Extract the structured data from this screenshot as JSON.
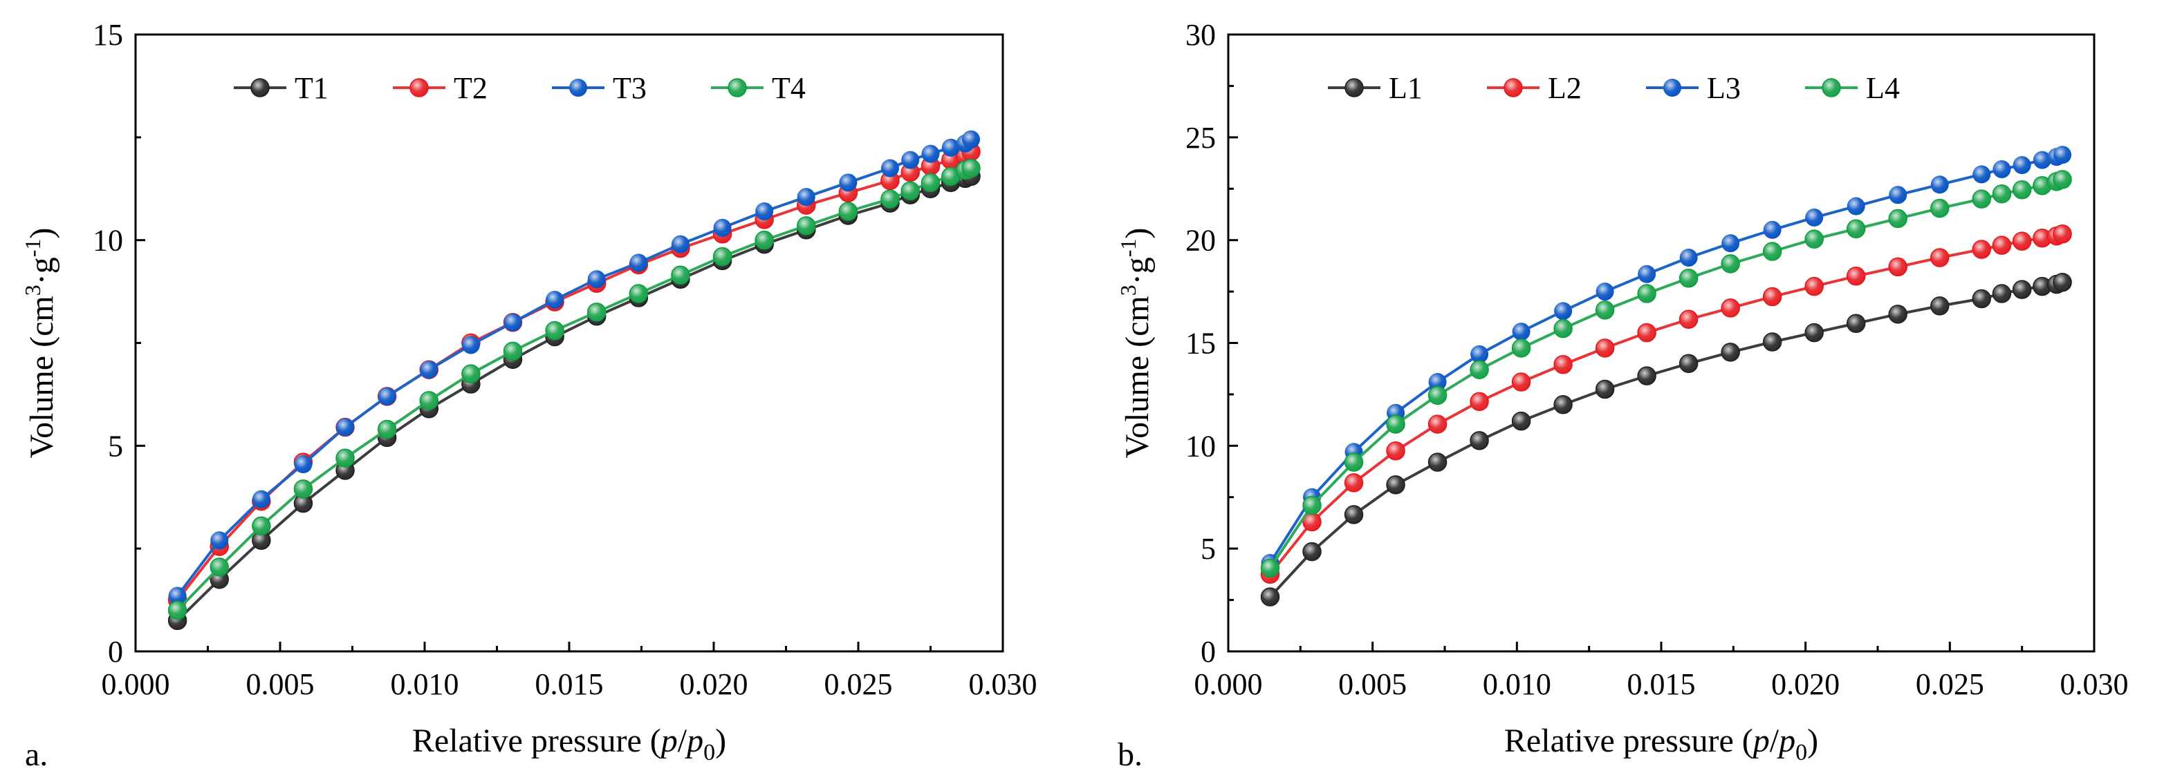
{
  "figure": {
    "panels": [
      {
        "panel_label": "a.",
        "xlabel_prefix": "Relative pressure (",
        "xlabel_p": "p",
        "xlabel_slash": "/",
        "xlabel_p0": "p",
        "xlabel_sub": "0",
        "xlabel_suffix": ")",
        "ylabel_prefix": "Volume (cm",
        "ylabel_sup3": "3",
        "ylabel_mid": "·g",
        "ylabel_supm1": "-1",
        "ylabel_suffix": ")"
      },
      {
        "panel_label": "b.",
        "xlabel_prefix": "Relative pressure (",
        "xlabel_p": "p",
        "xlabel_slash": "/",
        "xlabel_p0": "p",
        "xlabel_sub": "0",
        "xlabel_suffix": ")",
        "ylabel_prefix": "Volume (cm",
        "ylabel_sup3": "3",
        "ylabel_mid": "·g",
        "ylabel_supm1": "-1",
        "ylabel_suffix": ")"
      }
    ]
  },
  "chart_data": [
    {
      "type": "line",
      "title": "",
      "xlabel": "Relative pressure (p/p0)",
      "ylabel": "Volume (cm3·g-1)",
      "xlim": [
        0.0,
        0.03
      ],
      "ylim": [
        0,
        15
      ],
      "xticks": [
        "0.000",
        "0.005",
        "0.010",
        "0.015",
        "0.020",
        "0.025",
        "0.030"
      ],
      "yticks": [
        "0",
        "5",
        "10",
        "15"
      ],
      "legend_position": "top-center",
      "x": [
        0.00145,
        0.0029,
        0.00435,
        0.0058,
        0.00725,
        0.0087,
        0.01015,
        0.0116,
        0.01305,
        0.0145,
        0.01595,
        0.0174,
        0.01885,
        0.0203,
        0.02175,
        0.0232,
        0.02465,
        0.0261,
        0.0268,
        0.0275,
        0.0282,
        0.0287,
        0.0289
      ],
      "series": [
        {
          "name": "T1",
          "color": "#3d3d3d",
          "values": [
            0.75,
            1.75,
            2.7,
            3.6,
            4.4,
            5.2,
            5.9,
            6.5,
            7.1,
            7.65,
            8.15,
            8.6,
            9.05,
            9.5,
            9.9,
            10.25,
            10.6,
            10.9,
            11.1,
            11.25,
            11.4,
            11.5,
            11.55
          ]
        },
        {
          "name": "T2",
          "color": "#e8353a",
          "values": [
            1.25,
            2.55,
            3.65,
            4.6,
            5.45,
            6.2,
            6.85,
            7.5,
            8.0,
            8.5,
            8.95,
            9.4,
            9.8,
            10.15,
            10.5,
            10.85,
            11.15,
            11.45,
            11.65,
            11.8,
            11.95,
            12.05,
            12.15
          ]
        },
        {
          "name": "T3",
          "color": "#1e63c8",
          "values": [
            1.35,
            2.7,
            3.7,
            4.55,
            5.45,
            6.2,
            6.85,
            7.45,
            8.0,
            8.55,
            9.05,
            9.45,
            9.9,
            10.3,
            10.7,
            11.05,
            11.4,
            11.75,
            11.95,
            12.1,
            12.25,
            12.35,
            12.45
          ]
        },
        {
          "name": "T4",
          "color": "#2eaa5a",
          "values": [
            1.0,
            2.05,
            3.05,
            3.95,
            4.7,
            5.4,
            6.1,
            6.75,
            7.3,
            7.8,
            8.25,
            8.7,
            9.15,
            9.6,
            10.0,
            10.35,
            10.7,
            11.0,
            11.2,
            11.4,
            11.55,
            11.7,
            11.75
          ]
        }
      ]
    },
    {
      "type": "line",
      "title": "",
      "xlabel": "Relative pressure (p/p0)",
      "ylabel": "Volume (cm3·g-1)",
      "xlim": [
        0.0,
        0.03
      ],
      "ylim": [
        0,
        30
      ],
      "xticks": [
        "0.000",
        "0.005",
        "0.010",
        "0.015",
        "0.020",
        "0.025",
        "0.030"
      ],
      "yticks": [
        "0",
        "5",
        "10",
        "15",
        "20",
        "25",
        "30"
      ],
      "legend_position": "top-center",
      "x": [
        0.00145,
        0.0029,
        0.00435,
        0.0058,
        0.00725,
        0.0087,
        0.01015,
        0.0116,
        0.01305,
        0.0145,
        0.01595,
        0.0174,
        0.01885,
        0.0203,
        0.02175,
        0.0232,
        0.02465,
        0.0261,
        0.0268,
        0.0275,
        0.0282,
        0.0287,
        0.0289
      ],
      "series": [
        {
          "name": "L1",
          "color": "#3d3d3d",
          "values": [
            2.65,
            4.85,
            6.65,
            8.1,
            9.2,
            10.25,
            11.2,
            12.0,
            12.75,
            13.4,
            14.0,
            14.55,
            15.05,
            15.5,
            15.95,
            16.4,
            16.8,
            17.15,
            17.4,
            17.6,
            17.75,
            17.85,
            17.95
          ]
        },
        {
          "name": "L2",
          "color": "#e8353a",
          "values": [
            3.75,
            6.3,
            8.2,
            9.75,
            11.05,
            12.15,
            13.1,
            13.95,
            14.75,
            15.5,
            16.15,
            16.7,
            17.25,
            17.75,
            18.25,
            18.7,
            19.15,
            19.55,
            19.75,
            19.95,
            20.1,
            20.2,
            20.3
          ]
        },
        {
          "name": "L3",
          "color": "#1e63c8",
          "values": [
            4.3,
            7.5,
            9.7,
            11.6,
            13.1,
            14.45,
            15.55,
            16.55,
            17.5,
            18.35,
            19.15,
            19.85,
            20.5,
            21.1,
            21.65,
            22.2,
            22.7,
            23.2,
            23.45,
            23.65,
            23.9,
            24.05,
            24.15
          ]
        },
        {
          "name": "L4",
          "color": "#2eaa5a",
          "values": [
            4.05,
            7.1,
            9.2,
            11.05,
            12.45,
            13.7,
            14.75,
            15.7,
            16.6,
            17.4,
            18.15,
            18.85,
            19.45,
            20.05,
            20.55,
            21.05,
            21.55,
            22.0,
            22.25,
            22.45,
            22.65,
            22.85,
            22.95
          ]
        }
      ]
    }
  ]
}
